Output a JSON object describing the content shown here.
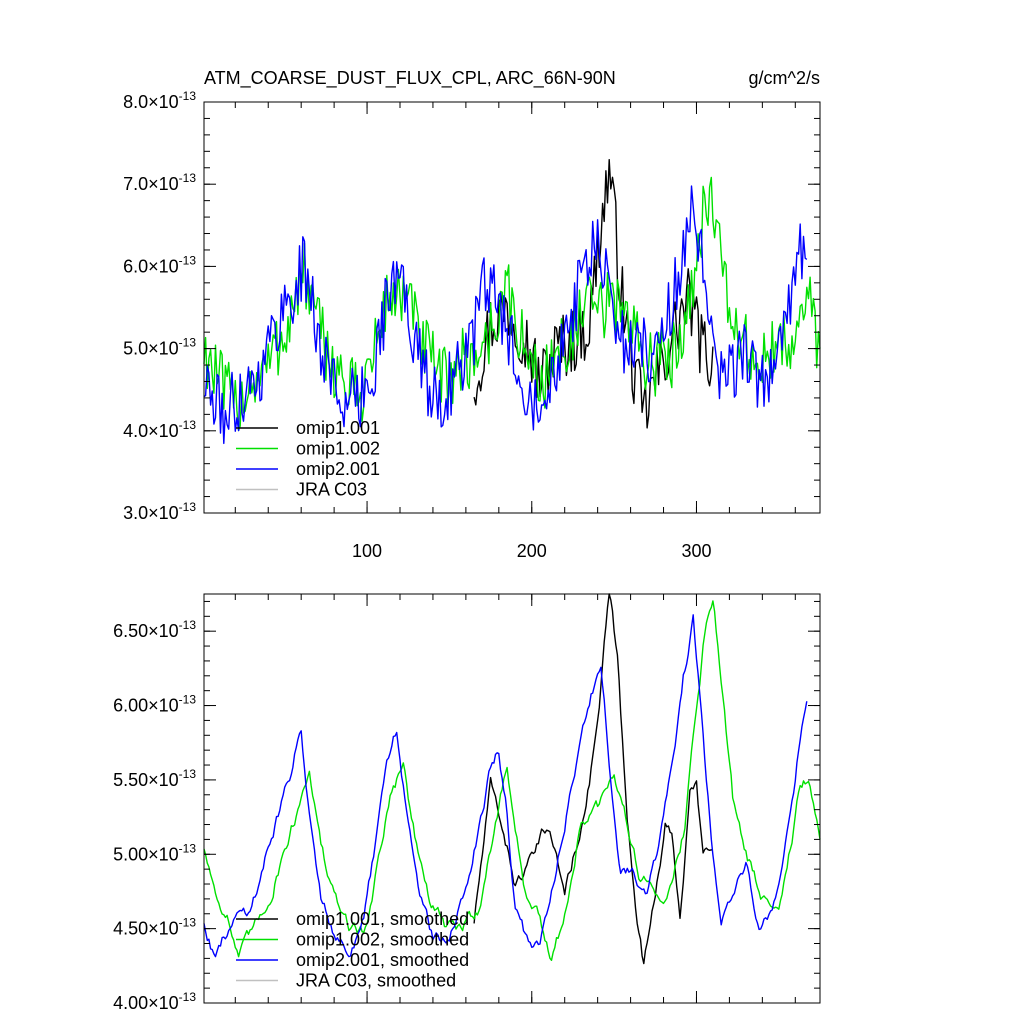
{
  "chart_data": [
    {
      "type": "line",
      "title": "ATM_COARSE_DUST_FLUX_CPL, ARC_66N-90N",
      "units": "g/cm^2/s",
      "xlim": [
        1,
        375
      ],
      "ylim": [
        3e-13,
        8e-13
      ],
      "y_exponent": "-13",
      "x_ticks": [
        100,
        200,
        300
      ],
      "x_tick_labels": [
        "100",
        "200",
        "300"
      ],
      "y_ticks": [
        3.0,
        4.0,
        5.0,
        6.0,
        7.0,
        8.0
      ],
      "y_tick_labels": [
        "3.0",
        "4.0",
        "5.0",
        "6.0",
        "7.0",
        "8.0"
      ],
      "legend_placement": "lower-left",
      "series": [
        {
          "name": "omip1.001",
          "color": "#000000",
          "x_range": [
            165,
            310
          ],
          "knots": [
            [
              165,
              4.6
            ],
            [
              175,
              5.3
            ],
            [
              185,
              5.5
            ],
            [
              195,
              5.2
            ],
            [
              205,
              4.6
            ],
            [
              215,
              5.0
            ],
            [
              225,
              5.1
            ],
            [
              235,
              5.3
            ],
            [
              240,
              6.2
            ],
            [
              247,
              7.2
            ],
            [
              255,
              5.6
            ],
            [
              262,
              4.7
            ],
            [
              268,
              4.2
            ],
            [
              275,
              4.6
            ],
            [
              283,
              5.0
            ],
            [
              290,
              5.4
            ],
            [
              296,
              5.6
            ],
            [
              302,
              5.1
            ],
            [
              310,
              4.8
            ]
          ]
        },
        {
          "name": "omip1.002",
          "color": "#00e000",
          "x_range": [
            1,
            375
          ],
          "knots": [
            [
              1,
              5.0
            ],
            [
              10,
              4.6
            ],
            [
              20,
              4.3
            ],
            [
              30,
              4.6
            ],
            [
              40,
              4.8
            ],
            [
              50,
              5.2
            ],
            [
              55,
              5.5
            ],
            [
              62,
              5.9
            ],
            [
              68,
              5.4
            ],
            [
              75,
              5.0
            ],
            [
              85,
              4.6
            ],
            [
              95,
              4.4
            ],
            [
              105,
              5.0
            ],
            [
              112,
              5.6
            ],
            [
              120,
              5.7
            ],
            [
              128,
              5.4
            ],
            [
              135,
              5.0
            ],
            [
              145,
              4.6
            ],
            [
              155,
              4.8
            ],
            [
              165,
              4.9
            ],
            [
              175,
              5.2
            ],
            [
              185,
              5.7
            ],
            [
              195,
              5.0
            ],
            [
              205,
              4.6
            ],
            [
              215,
              4.9
            ],
            [
              225,
              5.2
            ],
            [
              235,
              5.5
            ],
            [
              245,
              5.5
            ],
            [
              255,
              5.6
            ],
            [
              265,
              5.0
            ],
            [
              275,
              4.8
            ],
            [
              285,
              4.9
            ],
            [
              295,
              5.5
            ],
            [
              300,
              6.2
            ],
            [
              308,
              7.0
            ],
            [
              315,
              6.0
            ],
            [
              322,
              5.3
            ],
            [
              330,
              5.0
            ],
            [
              340,
              4.8
            ],
            [
              350,
              5.0
            ],
            [
              360,
              5.2
            ],
            [
              368,
              5.6
            ],
            [
              375,
              4.9
            ]
          ]
        },
        {
          "name": "omip2.001",
          "color": "#0000ff",
          "x_range": [
            1,
            367
          ],
          "knots": [
            [
              1,
              4.6
            ],
            [
              8,
              4.3
            ],
            [
              15,
              4.2
            ],
            [
              25,
              4.5
            ],
            [
              35,
              4.7
            ],
            [
              45,
              5.3
            ],
            [
              55,
              5.7
            ],
            [
              62,
              6.0
            ],
            [
              68,
              5.4
            ],
            [
              75,
              4.8
            ],
            [
              85,
              4.4
            ],
            [
              95,
              4.3
            ],
            [
              105,
              4.9
            ],
            [
              112,
              5.6
            ],
            [
              120,
              5.9
            ],
            [
              128,
              5.2
            ],
            [
              135,
              4.6
            ],
            [
              145,
              4.4
            ],
            [
              155,
              4.7
            ],
            [
              165,
              5.2
            ],
            [
              172,
              5.8
            ],
            [
              180,
              5.5
            ],
            [
              190,
              4.9
            ],
            [
              200,
              4.4
            ],
            [
              210,
              4.6
            ],
            [
              222,
              5.3
            ],
            [
              232,
              5.9
            ],
            [
              238,
              6.3
            ],
            [
              245,
              5.8
            ],
            [
              255,
              5.1
            ],
            [
              265,
              5.0
            ],
            [
              275,
              5.0
            ],
            [
              285,
              5.5
            ],
            [
              292,
              6.2
            ],
            [
              298,
              6.7
            ],
            [
              304,
              5.9
            ],
            [
              312,
              4.6
            ],
            [
              320,
              4.7
            ],
            [
              330,
              5.0
            ],
            [
              340,
              4.5
            ],
            [
              350,
              5.0
            ],
            [
              358,
              5.6
            ],
            [
              362,
              6.3
            ],
            [
              367,
              5.9
            ]
          ]
        },
        {
          "name": "JRA C03",
          "color": "#c0c0c0",
          "knots": []
        }
      ]
    },
    {
      "type": "line",
      "xlim": [
        1,
        375
      ],
      "ylim": [
        4e-13,
        6.75e-13
      ],
      "y_exponent": "-13",
      "y_ticks": [
        4.0,
        4.5,
        5.0,
        5.5,
        6.0,
        6.5
      ],
      "y_tick_labels": [
        "4.00",
        "4.50",
        "5.00",
        "5.50",
        "6.00",
        "6.50"
      ],
      "x_ticks": [
        100,
        200,
        300
      ],
      "legend_placement": "lower-left",
      "series": [
        {
          "name": "omip1.001, smoothed",
          "color": "#000000",
          "x_range": [
            165,
            310
          ],
          "knots": [
            [
              165,
              4.55
            ],
            [
              175,
              5.45
            ],
            [
              182,
              5.2
            ],
            [
              190,
              4.8
            ],
            [
              200,
              4.95
            ],
            [
              210,
              5.2
            ],
            [
              220,
              4.75
            ],
            [
              228,
              5.1
            ],
            [
              235,
              5.5
            ],
            [
              241,
              6.0
            ],
            [
              247,
              6.75
            ],
            [
              252,
              6.3
            ],
            [
              258,
              5.2
            ],
            [
              263,
              4.7
            ],
            [
              268,
              4.25
            ],
            [
              274,
              4.7
            ],
            [
              281,
              5.2
            ],
            [
              285,
              5.1
            ],
            [
              290,
              4.6
            ],
            [
              296,
              5.4
            ],
            [
              300,
              5.45
            ],
            [
              304,
              5.0
            ],
            [
              310,
              5.0
            ]
          ]
        },
        {
          "name": "omip1.002, smoothed",
          "color": "#00e000",
          "x_range": [
            1,
            375
          ],
          "knots": [
            [
              1,
              5.05
            ],
            [
              8,
              4.75
            ],
            [
              15,
              4.6
            ],
            [
              22,
              4.3
            ],
            [
              32,
              4.5
            ],
            [
              42,
              4.75
            ],
            [
              50,
              5.05
            ],
            [
              58,
              5.3
            ],
            [
              65,
              5.6
            ],
            [
              72,
              5.05
            ],
            [
              80,
              4.7
            ],
            [
              90,
              4.5
            ],
            [
              100,
              4.5
            ],
            [
              108,
              5.05
            ],
            [
              115,
              5.45
            ],
            [
              122,
              5.6
            ],
            [
              130,
              5.05
            ],
            [
              138,
              4.7
            ],
            [
              148,
              4.5
            ],
            [
              158,
              4.5
            ],
            [
              168,
              4.65
            ],
            [
              178,
              5.2
            ],
            [
              185,
              5.6
            ],
            [
              195,
              4.8
            ],
            [
              205,
              4.55
            ],
            [
              212,
              4.25
            ],
            [
              220,
              4.6
            ],
            [
              230,
              5.2
            ],
            [
              240,
              5.3
            ],
            [
              250,
              5.5
            ],
            [
              255,
              5.35
            ],
            [
              265,
              4.9
            ],
            [
              275,
              4.7
            ],
            [
              285,
              4.8
            ],
            [
              293,
              5.2
            ],
            [
              300,
              6.0
            ],
            [
              305,
              6.5
            ],
            [
              310,
              6.75
            ],
            [
              316,
              6.1
            ],
            [
              322,
              5.4
            ],
            [
              330,
              5.0
            ],
            [
              340,
              4.7
            ],
            [
              350,
              4.7
            ],
            [
              358,
              5.1
            ],
            [
              362,
              5.4
            ],
            [
              368,
              5.5
            ],
            [
              375,
              5.05
            ]
          ]
        },
        {
          "name": "omip2.001, smoothed",
          "color": "#0000ff",
          "x_range": [
            1,
            367
          ],
          "knots": [
            [
              1,
              4.55
            ],
            [
              8,
              4.3
            ],
            [
              14,
              4.45
            ],
            [
              22,
              4.6
            ],
            [
              30,
              4.65
            ],
            [
              40,
              5.05
            ],
            [
              48,
              5.35
            ],
            [
              55,
              5.6
            ],
            [
              60,
              5.85
            ],
            [
              66,
              5.2
            ],
            [
              72,
              4.75
            ],
            [
              80,
              4.5
            ],
            [
              90,
              4.35
            ],
            [
              98,
              4.55
            ],
            [
              106,
              5.1
            ],
            [
              112,
              5.6
            ],
            [
              118,
              5.85
            ],
            [
              124,
              5.3
            ],
            [
              130,
              4.8
            ],
            [
              140,
              4.45
            ],
            [
              150,
              4.4
            ],
            [
              160,
              4.75
            ],
            [
              168,
              5.2
            ],
            [
              175,
              5.6
            ],
            [
              180,
              5.7
            ],
            [
              185,
              5.3
            ],
            [
              190,
              4.6
            ],
            [
              198,
              4.4
            ],
            [
              205,
              4.4
            ],
            [
              212,
              4.75
            ],
            [
              222,
              5.35
            ],
            [
              230,
              5.8
            ],
            [
              236,
              6.05
            ],
            [
              242,
              6.25
            ],
            [
              248,
              5.5
            ],
            [
              254,
              4.9
            ],
            [
              262,
              4.9
            ],
            [
              270,
              4.75
            ],
            [
              278,
              5.1
            ],
            [
              286,
              5.6
            ],
            [
              292,
              6.2
            ],
            [
              298,
              6.55
            ],
            [
              304,
              5.8
            ],
            [
              310,
              5.0
            ],
            [
              315,
              4.55
            ],
            [
              322,
              4.75
            ],
            [
              330,
              4.95
            ],
            [
              338,
              4.45
            ],
            [
              346,
              4.6
            ],
            [
              354,
              5.1
            ],
            [
              360,
              5.5
            ],
            [
              363,
              5.8
            ],
            [
              367,
              6.05
            ]
          ]
        },
        {
          "name": "JRA C03, smoothed",
          "color": "#c0c0c0",
          "knots": []
        }
      ]
    }
  ]
}
